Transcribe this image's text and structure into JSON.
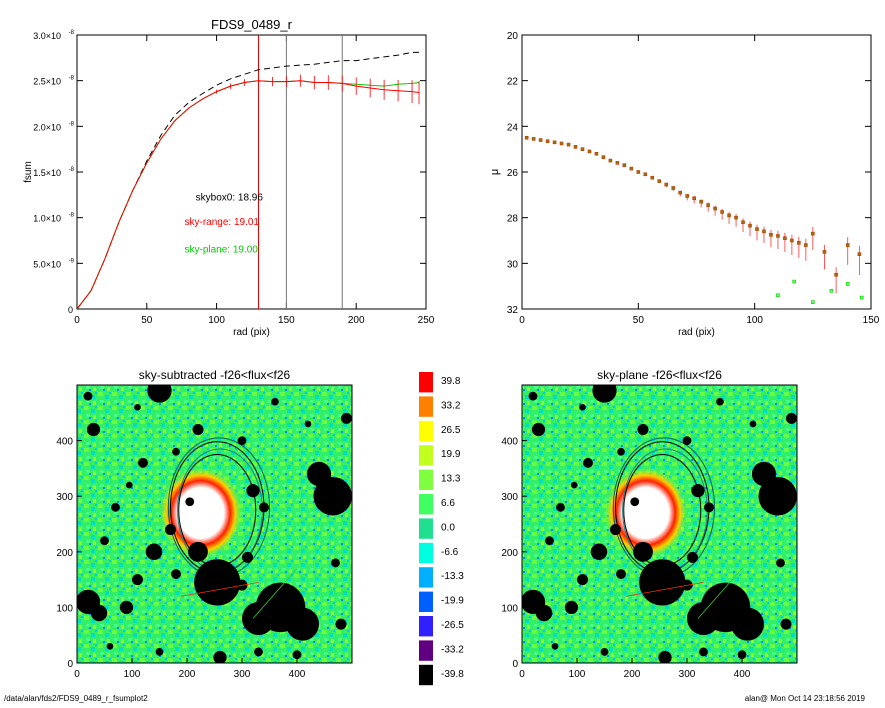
{
  "chart_data": [
    {
      "type": "line",
      "title": "FDS9_0489_r",
      "xlabel": "rad (pix)",
      "ylabel": "fsum",
      "xlim": [
        0,
        250
      ],
      "ylim": [
        0,
        3e-08
      ],
      "x_ticks": [
        "0",
        "50",
        "100",
        "150",
        "200",
        "250"
      ],
      "y_ticks": [
        {
          "m": "0",
          "e": ""
        },
        {
          "m": "5.0×10",
          "e": "-9"
        },
        {
          "m": "1.0×10",
          "e": "-8"
        },
        {
          "m": "1.5×10",
          "e": "-8"
        },
        {
          "m": "2.0×10",
          "e": "-8"
        },
        {
          "m": "2.5×10",
          "e": "-8"
        },
        {
          "m": "3.0×10",
          "e": "-8"
        }
      ],
      "series": [
        {
          "color": "#000000",
          "style": "dashed",
          "x": [
            0,
            10,
            20,
            30,
            40,
            50,
            60,
            70,
            80,
            90,
            100,
            110,
            120,
            130,
            140,
            150,
            160,
            170,
            180,
            190,
            200,
            210,
            220,
            230,
            240,
            245
          ],
          "values": [
            0,
            2e-09,
            5.5e-09,
            9.5e-09,
            1.3e-08,
            1.62e-08,
            1.9e-08,
            2.12e-08,
            2.26e-08,
            2.36e-08,
            2.45e-08,
            2.52e-08,
            2.57e-08,
            2.62e-08,
            2.64e-08,
            2.66e-08,
            2.67e-08,
            2.68e-08,
            2.7e-08,
            2.72e-08,
            2.72e-08,
            2.74e-08,
            2.76e-08,
            2.78e-08,
            2.81e-08,
            2.81e-08
          ]
        },
        {
          "color": "#00cc00",
          "style": "solid",
          "x": [
            0,
            10,
            20,
            30,
            40,
            50,
            60,
            70,
            80,
            90,
            100,
            110,
            120,
            130,
            140,
            150,
            160,
            170,
            180,
            190,
            200,
            210,
            220,
            230,
            240,
            245
          ],
          "values": [
            0,
            2e-09,
            5.5e-09,
            9.5e-09,
            1.3e-08,
            1.6e-08,
            1.86e-08,
            2.06e-08,
            2.2e-08,
            2.3e-08,
            2.38e-08,
            2.44e-08,
            2.48e-08,
            2.5e-08,
            2.49e-08,
            2.49e-08,
            2.5e-08,
            2.48e-08,
            2.48e-08,
            2.47e-08,
            2.46e-08,
            2.45e-08,
            2.44e-08,
            2.46e-08,
            2.47e-08,
            2.48e-08
          ]
        },
        {
          "color": "#ff0000",
          "style": "solid-errorbars",
          "x": [
            0,
            10,
            20,
            30,
            40,
            50,
            60,
            70,
            80,
            90,
            100,
            110,
            120,
            130,
            140,
            150,
            160,
            170,
            180,
            190,
            200,
            210,
            220,
            230,
            240,
            245
          ],
          "values": [
            0,
            2e-09,
            5.5e-09,
            9.5e-09,
            1.3e-08,
            1.6e-08,
            1.86e-08,
            2.06e-08,
            2.2e-08,
            2.3e-08,
            2.38e-08,
            2.44e-08,
            2.48e-08,
            2.5e-08,
            2.49e-08,
            2.49e-08,
            2.5e-08,
            2.48e-08,
            2.48e-08,
            2.47e-08,
            2.44e-08,
            2.42e-08,
            2.4e-08,
            2.39e-08,
            2.38e-08,
            2.37e-08
          ]
        }
      ],
      "vertical_lines": [
        {
          "x": 130,
          "color": "#e00000"
        },
        {
          "x": 150,
          "color": "#777777"
        },
        {
          "x": 190,
          "color": "#777777"
        }
      ],
      "annotations": [
        {
          "text": "skybox0: 18.96",
          "x": 85,
          "y": 1.19e-08,
          "color": "#000000"
        },
        {
          "text": "sky-range: 19.01",
          "x": 77,
          "y": 9.2e-09,
          "color": "#ff0000"
        },
        {
          "text": "sky-plane: 19.00",
          "x": 77,
          "y": 6.2e-09,
          "color": "#00cc00"
        }
      ]
    },
    {
      "type": "scatter",
      "title": "",
      "xlabel": "rad (pix)",
      "ylabel": "μ",
      "xlim": [
        0,
        150
      ],
      "ylim": [
        32,
        20
      ],
      "y_inverted": true,
      "x_ticks": [
        "0",
        "50",
        "100",
        "150"
      ],
      "y_ticks": [
        "20",
        "22",
        "24",
        "26",
        "28",
        "30",
        "32"
      ],
      "series": [
        {
          "color": "#cc3300",
          "marker": "square-errorbar",
          "x": [
            2,
            5,
            8,
            11,
            14,
            17,
            20,
            23,
            26,
            29,
            32,
            35,
            38,
            41,
            44,
            47,
            50,
            53,
            56,
            59,
            62,
            65,
            68,
            71,
            74,
            77,
            80,
            83,
            86,
            89,
            92,
            95,
            98,
            101,
            104,
            107,
            110,
            113,
            116,
            119,
            122,
            125,
            130,
            135,
            140,
            145
          ],
          "values": [
            24.5,
            24.55,
            24.6,
            24.65,
            24.7,
            24.75,
            24.8,
            24.9,
            25.0,
            25.1,
            25.2,
            25.35,
            25.5,
            25.6,
            25.7,
            25.85,
            26.0,
            26.1,
            26.25,
            26.4,
            26.55,
            26.7,
            26.9,
            27.05,
            27.15,
            27.3,
            27.45,
            27.6,
            27.75,
            27.9,
            28.0,
            28.2,
            28.35,
            28.5,
            28.6,
            28.75,
            28.8,
            28.9,
            29.0,
            29.1,
            29.2,
            28.7,
            29.5,
            30.5,
            29.2,
            29.6
          ]
        },
        {
          "color": "#00cc00",
          "marker": "square",
          "x": [
            110,
            117,
            125,
            133,
            140,
            146
          ],
          "values": [
            31.4,
            30.8,
            31.7,
            31.2,
            30.9,
            31.5
          ]
        }
      ]
    },
    {
      "type": "heatmap",
      "title": "sky-subtracted -f26<flux<f26",
      "xlim": [
        0,
        500
      ],
      "ylim": [
        0,
        500
      ],
      "x_ticks": [
        "0",
        "100",
        "200",
        "300",
        "400"
      ],
      "y_ticks": [
        "0",
        "100",
        "200",
        "300",
        "400"
      ]
    },
    {
      "type": "heatmap",
      "title": "sky-plane -f26<flux<f26",
      "xlim": [
        0,
        500
      ],
      "ylim": [
        0,
        500
      ],
      "x_ticks": [
        "0",
        "100",
        "200",
        "300",
        "400"
      ],
      "y_ticks": [
        "0",
        "100",
        "200",
        "300",
        "400"
      ]
    }
  ],
  "colorbar": {
    "labels": [
      "39.8",
      "33.2",
      "26.5",
      "19.9",
      "13.3",
      "6.6",
      "0.0",
      "-6.6",
      "-13.3",
      "-19.9",
      "-26.5",
      "-33.2",
      "-39.8"
    ],
    "colors": [
      "#ff0000",
      "#ff7f00",
      "#ffff00",
      "#c0ff20",
      "#80ff40",
      "#40ff60",
      "#20e090",
      "#00ffe0",
      "#00b0ff",
      "#0060ff",
      "#3020ff",
      "#600080",
      "#000000"
    ]
  },
  "footer": {
    "left": "/data/alan/fds2/FDS9_0489_r_fsumplot2",
    "right": "alan@  Mon Oct 14 23:18:56 2019"
  }
}
